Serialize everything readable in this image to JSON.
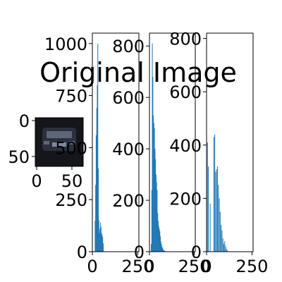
{
  "figure": {
    "background": "#ffffff",
    "title": "Original Image",
    "thumbnail": {
      "x_ticks": [
        "0",
        "50"
      ],
      "y_ticks": [
        "0",
        "50"
      ],
      "colors": {
        "dark": "#14161c",
        "mid": "#2b313c",
        "light": "#5e6778",
        "edge": "#7f899a"
      }
    }
  },
  "chart_data": [
    {
      "type": "bar",
      "title": "",
      "xlabel": "",
      "ylabel": "",
      "xlim": [
        0,
        256
      ],
      "ylim": [
        0,
        1050
      ],
      "x_ticks": [
        0,
        250
      ],
      "y_ticks": [
        0,
        250,
        500,
        750,
        1000
      ],
      "color": "#1f77b4",
      "grid": false,
      "series": [
        {
          "x": [
            15,
            18,
            21,
            24,
            27,
            30,
            33,
            36,
            39,
            42,
            45,
            48,
            51,
            54,
            57,
            60
          ],
          "values": [
            150,
            320,
            560,
            690,
            800,
            1000,
            400,
            150,
            90,
            110,
            140,
            120,
            90,
            80,
            70,
            40
          ]
        }
      ]
    },
    {
      "type": "bar",
      "title": "",
      "xlabel": "",
      "ylabel": "",
      "xlim": [
        0,
        256
      ],
      "ylim": [
        0,
        850
      ],
      "x_ticks": [
        0,
        250
      ],
      "y_ticks": [
        0,
        200,
        400,
        600,
        800
      ],
      "color": "#1f77b4",
      "grid": false,
      "series": [
        {
          "x": [
            10,
            13,
            16,
            19,
            22,
            25,
            28,
            31,
            34,
            37,
            40,
            43,
            46,
            49,
            52,
            55,
            58,
            61,
            64,
            67,
            70,
            73,
            76,
            79,
            82,
            85,
            88
          ],
          "values": [
            30,
            240,
            810,
            680,
            530,
            500,
            480,
            400,
            360,
            300,
            270,
            240,
            150,
            120,
            100,
            90,
            80,
            60,
            40,
            30,
            20,
            15,
            10,
            5,
            5,
            3,
            2
          ]
        }
      ]
    },
    {
      "type": "bar",
      "title": "",
      "xlabel": "",
      "ylabel": "",
      "xlim": [
        0,
        256
      ],
      "ylim": [
        0,
        820
      ],
      "x_ticks": [
        0,
        250
      ],
      "y_ticks": [
        0,
        200,
        400,
        600,
        800
      ],
      "color": "#1f77b4",
      "grid": false,
      "series": [
        {
          "x": [
            5,
            10,
            20,
            40,
            45,
            50,
            55,
            60,
            65,
            70,
            75,
            80,
            85,
            90,
            95,
            100,
            105,
            110,
            115
          ],
          "values": [
            410,
            320,
            180,
            430,
            440,
            300,
            310,
            320,
            250,
            200,
            150,
            100,
            80,
            50,
            30,
            40,
            20,
            10,
            5
          ]
        }
      ]
    }
  ]
}
